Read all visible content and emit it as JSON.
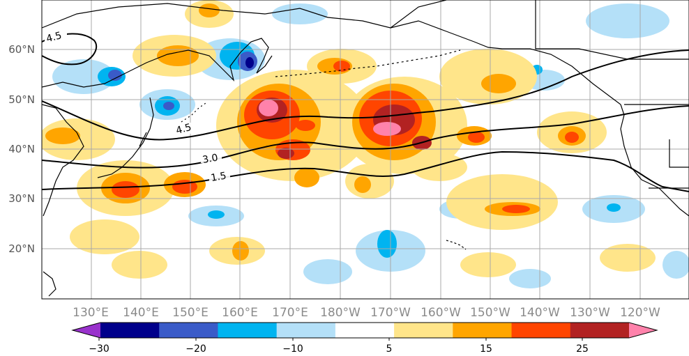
{
  "map": {
    "lat_labels": [
      "60°N",
      "50°N",
      "40°N",
      "30°N",
      "20°N"
    ],
    "lon_labels": [
      "130°E",
      "140°E",
      "150°E",
      "160°E",
      "170°E",
      "180°W",
      "170°W",
      "160°W",
      "150°W",
      "140°W",
      "130°W",
      "120°W"
    ],
    "contour_labels": [
      "4.5",
      "4.5",
      "3.0",
      "1.5"
    ],
    "colors": {
      "grid": "#a8a8a8",
      "lat_label": "#555555",
      "lon_label": "#8a8a8a",
      "contour": "#000000",
      "coast": "#000000"
    }
  },
  "colorbar": {
    "tick_labels": [
      "−30",
      "−20",
      "−10",
      "5",
      "15",
      "25"
    ],
    "bins": [
      {
        "color": "#9932cc"
      },
      {
        "color": "#00008b"
      },
      {
        "color": "#3a5bc8"
      },
      {
        "color": "#00b4f0"
      },
      {
        "color": "#b4e0f8"
      },
      {
        "color": "#ffffff"
      },
      {
        "color": "#ffe58a"
      },
      {
        "color": "#ffa500"
      },
      {
        "color": "#ff4500"
      },
      {
        "color": "#b22222"
      },
      {
        "color": "#ff82ab"
      }
    ]
  }
}
